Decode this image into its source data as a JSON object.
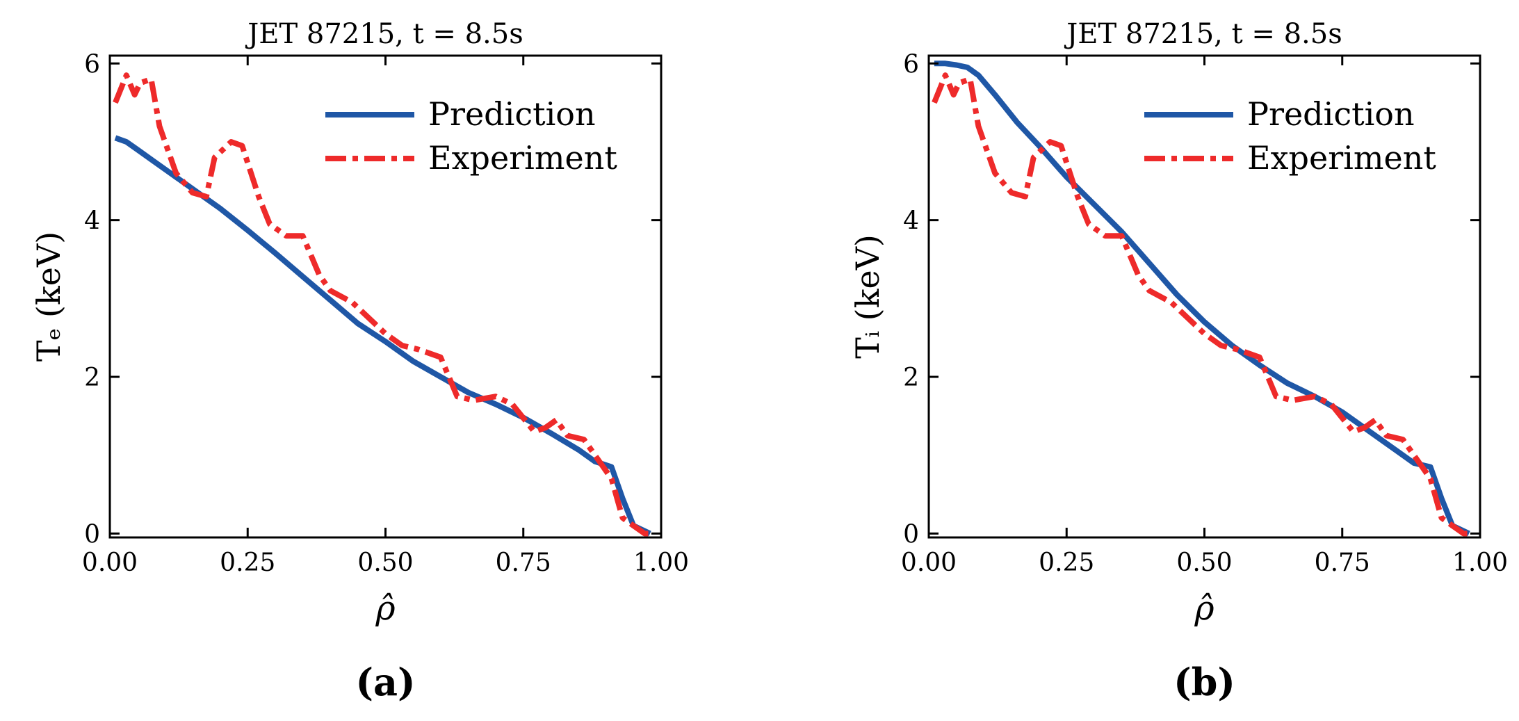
{
  "colors": {
    "prediction": "#1f57a6",
    "experiment": "#ee2a2a",
    "axis": "#000000",
    "background": "#ffffff"
  },
  "chart_data": [
    {
      "type": "line",
      "panel_label": "(a)",
      "title": "JET 87215, t = 8.5s",
      "xlabel": "ρ̂",
      "ylabel": "Tₑ (keV)",
      "xlim": [
        0,
        1
      ],
      "ylim": [
        -0.05,
        6.1
      ],
      "xticks": [
        0,
        0.25,
        0.5,
        0.75,
        1.0
      ],
      "xtick_labels": [
        "0.00",
        "0.25",
        "0.50",
        "0.75",
        "1.00"
      ],
      "yticks": [
        0,
        2,
        4,
        6
      ],
      "ytick_labels": [
        "0",
        "2",
        "4",
        "6"
      ],
      "grid": false,
      "legend_position": "top-right",
      "series": [
        {
          "name": "Prediction",
          "style": "solid",
          "x": [
            0.01,
            0.03,
            0.05,
            0.08,
            0.12,
            0.16,
            0.2,
            0.25,
            0.3,
            0.35,
            0.4,
            0.45,
            0.5,
            0.55,
            0.6,
            0.65,
            0.7,
            0.75,
            0.8,
            0.85,
            0.88,
            0.91,
            0.93,
            0.95,
            0.98
          ],
          "y": [
            5.05,
            5.0,
            4.9,
            4.75,
            4.55,
            4.35,
            4.15,
            3.87,
            3.58,
            3.28,
            2.98,
            2.68,
            2.45,
            2.2,
            2.0,
            1.8,
            1.65,
            1.48,
            1.28,
            1.07,
            0.92,
            0.85,
            0.45,
            0.1,
            0.0
          ]
        },
        {
          "name": "Experiment",
          "style": "dashdot",
          "x": [
            0.01,
            0.03,
            0.045,
            0.055,
            0.075,
            0.09,
            0.12,
            0.15,
            0.175,
            0.19,
            0.22,
            0.24,
            0.27,
            0.29,
            0.32,
            0.35,
            0.38,
            0.4,
            0.44,
            0.47,
            0.5,
            0.53,
            0.56,
            0.6,
            0.63,
            0.66,
            0.7,
            0.73,
            0.77,
            0.79,
            0.81,
            0.83,
            0.86,
            0.89,
            0.91,
            0.93,
            0.95,
            0.97,
            0.98
          ],
          "y": [
            5.5,
            5.85,
            5.6,
            5.75,
            5.8,
            5.2,
            4.6,
            4.35,
            4.3,
            4.8,
            5.0,
            4.95,
            4.3,
            3.95,
            3.8,
            3.8,
            3.3,
            3.1,
            2.95,
            2.75,
            2.55,
            2.4,
            2.35,
            2.25,
            1.75,
            1.7,
            1.75,
            1.65,
            1.3,
            1.35,
            1.45,
            1.25,
            1.2,
            0.9,
            0.7,
            0.2,
            0.1,
            0.0,
            0.0
          ]
        }
      ]
    },
    {
      "type": "line",
      "panel_label": "(b)",
      "title": "JET 87215, t = 8.5s",
      "xlabel": "ρ̂",
      "ylabel": "Tᵢ (keV)",
      "xlim": [
        0,
        1
      ],
      "ylim": [
        -0.05,
        6.1
      ],
      "xticks": [
        0,
        0.25,
        0.5,
        0.75,
        1.0
      ],
      "xtick_labels": [
        "0.00",
        "0.25",
        "0.50",
        "0.75",
        "1.00"
      ],
      "yticks": [
        0,
        2,
        4,
        6
      ],
      "ytick_labels": [
        "0",
        "2",
        "4",
        "6"
      ],
      "grid": false,
      "legend_position": "top-right",
      "series": [
        {
          "name": "Prediction",
          "style": "solid",
          "x": [
            0.01,
            0.03,
            0.05,
            0.07,
            0.09,
            0.12,
            0.16,
            0.2,
            0.25,
            0.3,
            0.35,
            0.4,
            0.45,
            0.5,
            0.55,
            0.6,
            0.65,
            0.7,
            0.75,
            0.8,
            0.85,
            0.88,
            0.91,
            0.93,
            0.95,
            0.98
          ],
          "y": [
            6.0,
            6.0,
            5.98,
            5.95,
            5.85,
            5.6,
            5.25,
            4.95,
            4.55,
            4.2,
            3.85,
            3.45,
            3.05,
            2.7,
            2.4,
            2.15,
            1.92,
            1.75,
            1.55,
            1.3,
            1.05,
            0.9,
            0.85,
            0.45,
            0.1,
            0.0
          ]
        },
        {
          "name": "Experiment",
          "style": "dashdot",
          "x": [
            0.01,
            0.03,
            0.045,
            0.055,
            0.075,
            0.09,
            0.12,
            0.15,
            0.175,
            0.19,
            0.22,
            0.24,
            0.27,
            0.29,
            0.32,
            0.35,
            0.38,
            0.4,
            0.44,
            0.47,
            0.5,
            0.53,
            0.56,
            0.6,
            0.63,
            0.66,
            0.7,
            0.73,
            0.77,
            0.79,
            0.81,
            0.83,
            0.86,
            0.89,
            0.91,
            0.93,
            0.95,
            0.97,
            0.98
          ],
          "y": [
            5.5,
            5.85,
            5.6,
            5.75,
            5.8,
            5.2,
            4.6,
            4.35,
            4.3,
            4.8,
            5.0,
            4.95,
            4.3,
            3.95,
            3.8,
            3.8,
            3.3,
            3.1,
            2.95,
            2.75,
            2.55,
            2.4,
            2.35,
            2.25,
            1.75,
            1.7,
            1.75,
            1.65,
            1.3,
            1.35,
            1.45,
            1.25,
            1.2,
            0.9,
            0.7,
            0.2,
            0.1,
            0.0,
            0.0
          ]
        }
      ]
    }
  ]
}
